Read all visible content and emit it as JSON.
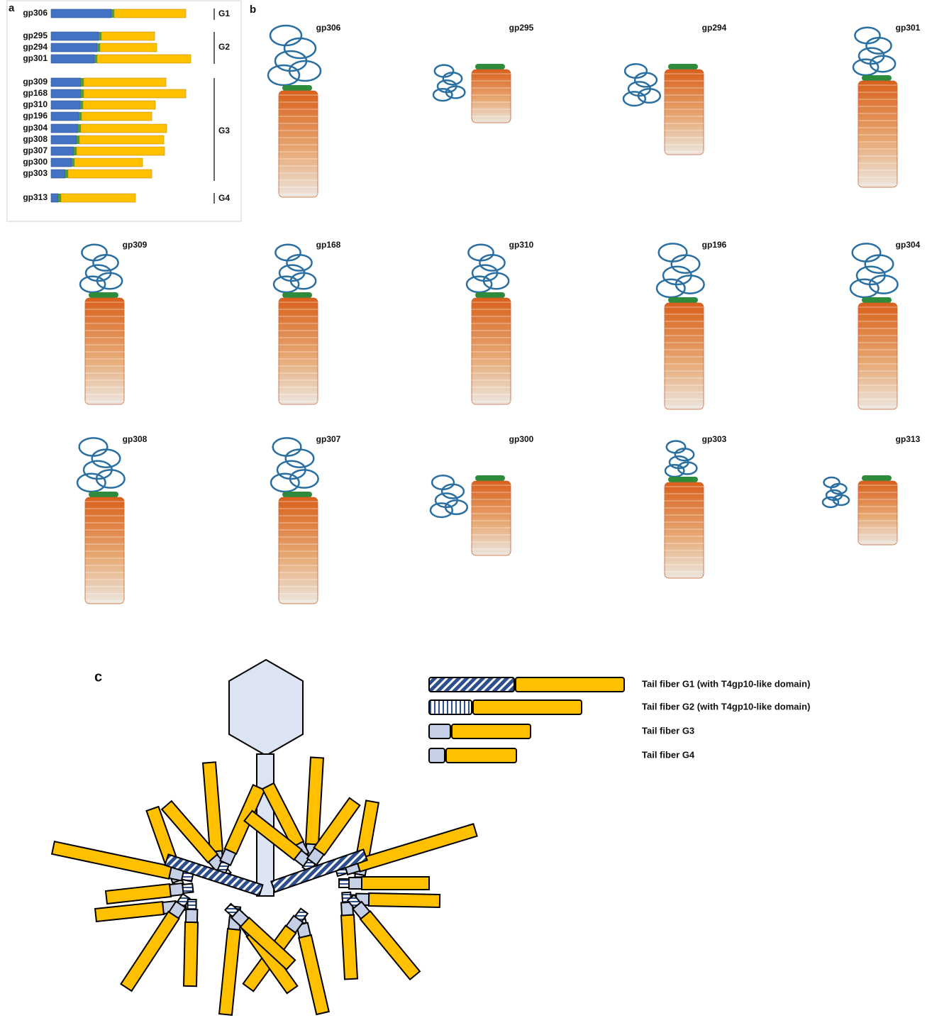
{
  "panel_a": {
    "label": "a",
    "proteins": [
      "gp306",
      "gp295",
      "gp294",
      "gp301",
      "gp309",
      "gp168",
      "gp310",
      "gp196",
      "gp304",
      "gp308",
      "gp307",
      "gp300",
      "gp303",
      "gp313"
    ],
    "groups": [
      "G1",
      "G2",
      "G3",
      "G4"
    ]
  },
  "panel_b": {
    "label": "b",
    "structures": [
      "gp306",
      "gp295",
      "gp294",
      "gp301",
      "gp309",
      "gp168",
      "gp310",
      "gp196",
      "gp304",
      "gp308",
      "gp307",
      "gp300",
      "gp303",
      "gp313"
    ]
  },
  "panel_c": {
    "label": "c",
    "legend": [
      "Tail fiber G1 (with T4gp10-like domain)",
      "Tail fiber G2 (with T4gp10-like domain)",
      "Tail fiber G3",
      "Tail fiber G4"
    ]
  }
}
